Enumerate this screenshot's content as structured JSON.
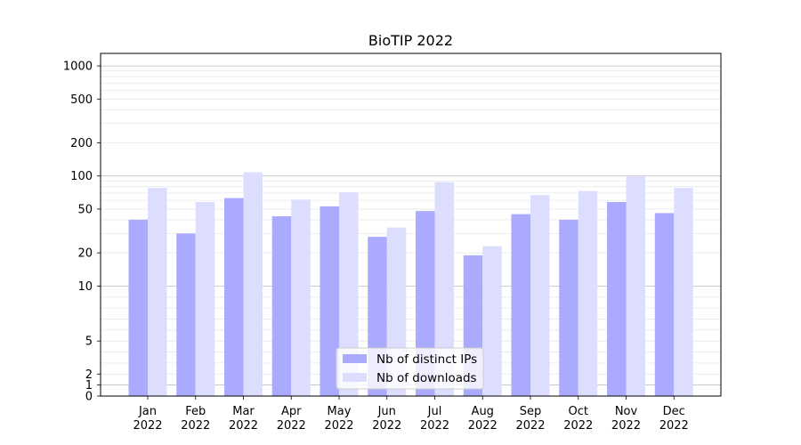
{
  "chart_data": {
    "type": "bar",
    "title": "BioTIP 2022",
    "xlabel": "",
    "ylabel": "",
    "y_scale": "symlog",
    "ylim": [
      0,
      1300
    ],
    "y_ticks": [
      0,
      1,
      2,
      5,
      10,
      20,
      50,
      100,
      200,
      500,
      1000
    ],
    "categories": [
      "Jan\n2022",
      "Feb\n2022",
      "Mar\n2022",
      "Apr\n2022",
      "May\n2022",
      "Jun\n2022",
      "Jul\n2022",
      "Aug\n2022",
      "Sep\n2022",
      "Oct\n2022",
      "Nov\n2022",
      "Dec\n2022"
    ],
    "series": [
      {
        "name": "Nb of distinct IPs",
        "color": "#aaaaff",
        "values": [
          40,
          30,
          63,
          43,
          53,
          28,
          48,
          19,
          45,
          40,
          58,
          46
        ]
      },
      {
        "name": "Nb of downloads",
        "color": "#ddddff",
        "values": [
          78,
          58,
          108,
          61,
          71,
          34,
          88,
          23,
          67,
          73,
          99,
          78
        ]
      }
    ],
    "legend_position": "bottom-center",
    "grid": true
  }
}
